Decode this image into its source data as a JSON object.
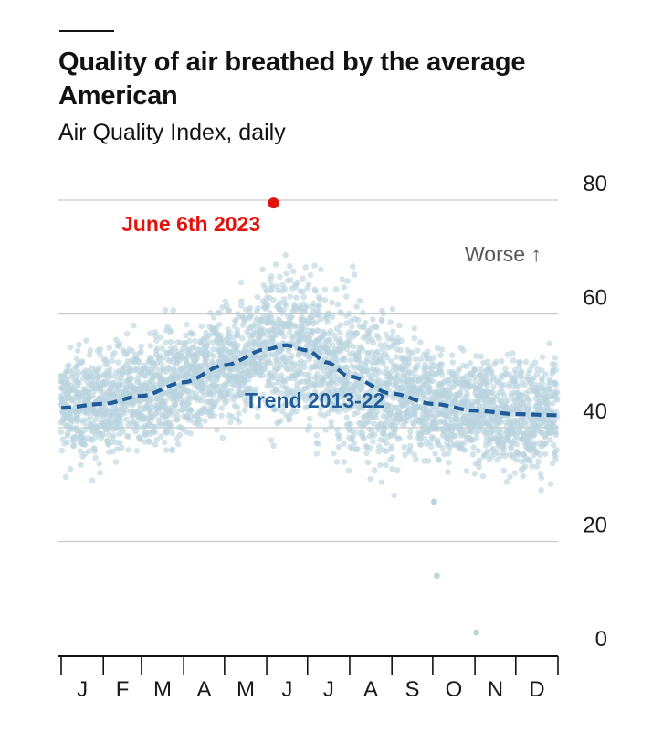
{
  "header": {
    "title": "Quality of air breathed by the average American",
    "subtitle": "Air Quality Index, daily"
  },
  "colors": {
    "scatter": "#b9d3df",
    "trend": "#1f5c99",
    "highlight": "#e3120b",
    "grid": "#c9c9c9",
    "axis": "#121212"
  },
  "chart_data": {
    "type": "scatter",
    "title": "Quality of air breathed by the average American",
    "subtitle": "Air Quality Index, daily",
    "ylim": [
      0,
      80
    ],
    "yticks": [
      0,
      20,
      40,
      60,
      80
    ],
    "ytick_labels": [
      "0",
      "20",
      "40",
      "60",
      "80"
    ],
    "xlim": [
      1,
      366
    ],
    "x_unit": "day of year",
    "month_labels": [
      "J",
      "F",
      "M",
      "A",
      "M",
      "J",
      "J",
      "A",
      "S",
      "O",
      "N",
      "D"
    ],
    "grid": true,
    "series": [
      {
        "name": "Trend 2013-22",
        "kind": "line",
        "style": "dashed",
        "x": [
          1,
          32,
          60,
          91,
          121,
          152,
          166,
          182,
          196,
          213,
          244,
          274,
          305,
          335,
          365
        ],
        "y": [
          43.5,
          44.2,
          45.6,
          48.0,
          51.0,
          53.8,
          54.5,
          53.6,
          51.5,
          49.0,
          46.0,
          44.2,
          43.0,
          42.4,
          42.2
        ]
      }
    ],
    "highlight": {
      "label": "June 6th 2023",
      "x": 157,
      "y": 79.5
    },
    "annotations": {
      "worse": "Worse ↑"
    },
    "daily_points_note": "",
    "outliers": [
      {
        "x": 275,
        "y": 27
      },
      {
        "x": 277,
        "y": 14
      },
      {
        "x": 306,
        "y": 4
      }
    ]
  }
}
